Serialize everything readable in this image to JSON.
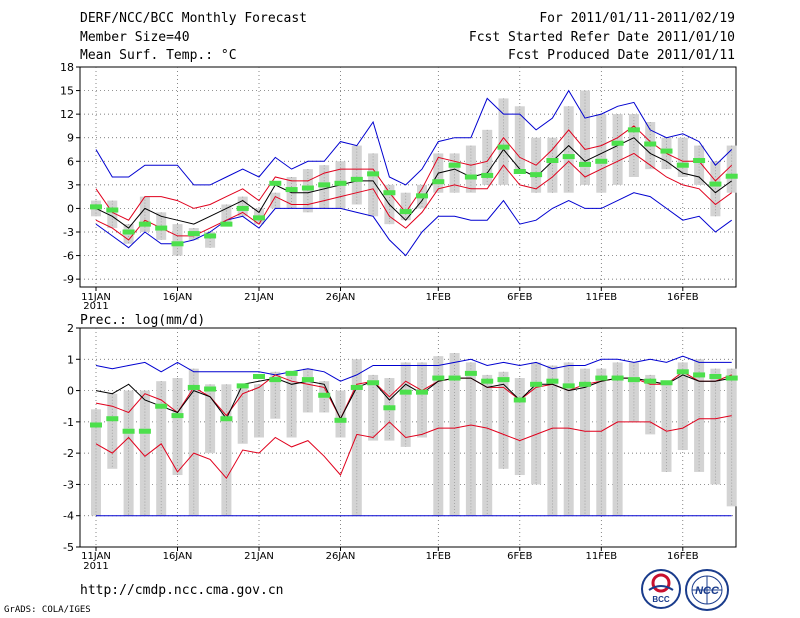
{
  "header": {
    "title": "DERF/NCC/BCC Monthly Forecast",
    "member_size": "Member Size=40",
    "variable": "Mean Surf. Temp.: °C",
    "period": "For 2011/01/11-2011/02/19",
    "fcst_started": "Fcst Started Refer Date 2011/01/10",
    "fcst_produced": "Fcst Produced Date 2011/01/11"
  },
  "footer": {
    "url": "http://cmdp.ncc.cma.gov.cn",
    "grads": "GrADS: COLA/IGES",
    "logo_bcc_text": "BCC",
    "logo_ncc_text": "NCC"
  },
  "colors": {
    "member_box": "#d3d3d3",
    "ensemble_mean": "#000000",
    "spread_inner": "#e0001c",
    "spread_outer": "#0000d0",
    "observed_marker": "#4ce04c",
    "grid": "#555555"
  },
  "chart_data": [
    {
      "type": "line",
      "title": "Mean Surf. Temp.: °C",
      "ylabel": "°C",
      "ylim": [
        -10,
        18
      ],
      "yticks": [
        -9,
        -6,
        -3,
        0,
        3,
        6,
        9,
        12,
        15,
        18
      ],
      "xlabels": [
        {
          "day": 1,
          "label": "11JAN",
          "sub": "2011"
        },
        {
          "day": 6,
          "label": "16JAN"
        },
        {
          "day": 11,
          "label": "21JAN"
        },
        {
          "day": 16,
          "label": "26JAN"
        },
        {
          "day": 22,
          "label": "1FEB"
        },
        {
          "day": 27,
          "label": "6FEB"
        },
        {
          "day": 32,
          "label": "11FEB"
        },
        {
          "day": 37,
          "label": "16FEB"
        }
      ],
      "days": [
        1,
        2,
        3,
        4,
        5,
        6,
        7,
        8,
        9,
        10,
        11,
        12,
        13,
        14,
        15,
        16,
        17,
        18,
        19,
        20,
        21,
        22,
        23,
        24,
        25,
        26,
        27,
        28,
        29,
        30,
        31,
        32,
        33,
        34,
        35,
        36,
        37,
        38,
        39,
        40
      ],
      "box_low": [
        -1,
        -2.5,
        -4.5,
        -3,
        -4,
        -6,
        -4,
        -5,
        -2,
        -1,
        -2,
        0,
        0,
        -0.5,
        0,
        0,
        0.5,
        -1,
        -2,
        -1.5,
        0,
        2,
        2,
        2,
        3,
        3,
        5,
        2,
        2,
        2,
        3,
        2,
        3,
        4,
        5,
        5,
        4,
        3,
        -1,
        2
      ],
      "box_high": [
        1,
        1,
        -2,
        1.5,
        -0.5,
        -2,
        -2.5,
        -3,
        0.5,
        1.5,
        0,
        2,
        4,
        5,
        5.5,
        6,
        8,
        7,
        3,
        2,
        3,
        7,
        7,
        8,
        10,
        14,
        13,
        9,
        9,
        13,
        15,
        12,
        12,
        12,
        11,
        9,
        9,
        8,
        6,
        8
      ],
      "mean": [
        0,
        -1,
        -2.5,
        0,
        -1,
        -1.5,
        -2,
        -1,
        0,
        1,
        -0.5,
        3,
        2,
        2,
        2.5,
        3,
        3.5,
        3.5,
        0.5,
        -1.5,
        1,
        4.5,
        5,
        4,
        4.5,
        7.5,
        5,
        4,
        6,
        8,
        6,
        7,
        8,
        9,
        7,
        6,
        4.5,
        4,
        2,
        3.5
      ],
      "upper1": [
        2.5,
        -0.5,
        -1.5,
        1.5,
        1.5,
        1,
        0,
        0.5,
        1.5,
        2.5,
        1,
        4,
        3.5,
        3.5,
        4.5,
        5,
        5,
        5,
        2,
        -0.5,
        2.5,
        6.5,
        6,
        5.5,
        6,
        9,
        6.5,
        5.5,
        7.5,
        10,
        7.5,
        8,
        9,
        10.5,
        8.5,
        7,
        6,
        6,
        3.5,
        5.5
      ],
      "lower1": [
        -1.5,
        -2.5,
        -4,
        -1.5,
        -2.5,
        -3.5,
        -3.5,
        -2.5,
        -1.5,
        -0.5,
        -2,
        1.5,
        0.5,
        0.5,
        1,
        1.5,
        2,
        2.5,
        -1,
        -2.5,
        -0.5,
        2.5,
        3,
        2.5,
        2.5,
        5.5,
        3,
        2.5,
        4,
        6,
        4,
        5,
        6,
        7,
        5.5,
        4,
        3,
        2.5,
        0.5,
        2
      ],
      "upper2": [
        7.5,
        4,
        4,
        5.5,
        5.5,
        5.5,
        3,
        3,
        4,
        5,
        4,
        6.5,
        5,
        6,
        6,
        8.5,
        8,
        11,
        4,
        3,
        5,
        8.5,
        9,
        9,
        14,
        12,
        12,
        10,
        11.5,
        15,
        11.5,
        12,
        13,
        13.5,
        10,
        9,
        9.5,
        8.5,
        5.5,
        7.5
      ],
      "lower2": [
        -2,
        -3.5,
        -5,
        -3,
        -4.5,
        -4.5,
        -4,
        -3,
        -1.5,
        -1,
        -2.5,
        0,
        0,
        0,
        0,
        0,
        -0.5,
        -1,
        -4,
        -6,
        -3,
        -1,
        -1,
        -1.5,
        -1.5,
        1,
        -2,
        -1.5,
        0,
        1,
        0,
        0,
        1,
        2,
        1.5,
        0,
        -1.5,
        -1,
        -3,
        -1.5
      ],
      "observed": [
        0.2,
        -0.2,
        -3,
        -2,
        -2.5,
        -4.5,
        -3.2,
        -3.5,
        -2,
        0,
        -1.2,
        3.2,
        2.4,
        2.6,
        3,
        3.2,
        3.7,
        4.4,
        2,
        -0.4,
        1.6,
        3.4,
        5.5,
        4,
        4.2,
        7.8,
        4.7,
        4.3,
        6.1,
        6.6,
        5.6,
        6,
        8.3,
        10,
        8.2,
        7.3,
        5.5,
        6.1,
        3.1,
        4.1
      ]
    },
    {
      "type": "line",
      "title": "Prec.: log(mm/d)",
      "ylabel": "log(mm/d)",
      "ylim": [
        -5,
        2
      ],
      "yticks": [
        -5,
        -4,
        -3,
        -2,
        -1,
        0,
        1,
        2
      ],
      "xlabels": [
        {
          "day": 1,
          "label": "11JAN",
          "sub": "2011"
        },
        {
          "day": 6,
          "label": "16JAN"
        },
        {
          "day": 11,
          "label": "21JAN"
        },
        {
          "day": 16,
          "label": "26JAN"
        },
        {
          "day": 22,
          "label": "1FEB"
        },
        {
          "day": 27,
          "label": "6FEB"
        },
        {
          "day": 32,
          "label": "11FEB"
        },
        {
          "day": 37,
          "label": "16FEB"
        }
      ],
      "days": [
        1,
        2,
        3,
        4,
        5,
        6,
        7,
        8,
        9,
        10,
        11,
        12,
        13,
        14,
        15,
        16,
        17,
        18,
        19,
        20,
        21,
        22,
        23,
        24,
        25,
        26,
        27,
        28,
        29,
        30,
        31,
        32,
        33,
        34,
        35,
        36,
        37,
        38,
        39,
        40
      ],
      "box_low": [
        -4,
        -2.5,
        -4,
        -4,
        -4,
        -2.7,
        -4,
        -2,
        -4,
        -1.7,
        -1.5,
        -0.9,
        -1.5,
        -0.7,
        -0.7,
        -1.5,
        -4,
        -1.6,
        -1.6,
        -1.8,
        -1.5,
        -4,
        -4,
        -4,
        -4,
        -2.5,
        -2.7,
        -3,
        -4,
        -4,
        -4,
        -4,
        -4,
        -1,
        -1.4,
        -2.6,
        -1.9,
        -2.6,
        -3,
        -3.7
      ],
      "box_high": [
        -0.6,
        -0.1,
        0,
        0,
        0.3,
        0.4,
        0.7,
        0.2,
        0.2,
        0.2,
        0.2,
        0.6,
        0.6,
        0.7,
        0.3,
        0,
        1,
        0.5,
        0.4,
        0.9,
        0.9,
        1.1,
        1.2,
        0.9,
        0.5,
        0.6,
        0.4,
        0.9,
        0.8,
        0.9,
        0.7,
        0.7,
        0.9,
        0.9,
        0.5,
        0.3,
        0.9,
        1,
        0.7,
        0.7
      ],
      "mean": [
        0,
        -0.1,
        0.2,
        -0.3,
        -0.5,
        -0.7,
        0,
        -0.2,
        -0.9,
        0.2,
        0.3,
        0.4,
        0.2,
        0.3,
        0.2,
        -0.9,
        0.1,
        0.3,
        -0.3,
        0.2,
        -0.1,
        0.3,
        0.4,
        0.4,
        0.1,
        0.2,
        -0.3,
        0.2,
        0.2,
        0,
        0.1,
        0.3,
        0.4,
        0.4,
        0.3,
        0.2,
        0.5,
        0.3,
        0.3,
        0.4
      ],
      "upper1": [
        -0.4,
        -0.5,
        -0.7,
        -0.1,
        -0.3,
        -0.7,
        0.1,
        -0.2,
        -0.8,
        -0.1,
        0.1,
        0.5,
        0.3,
        0.2,
        0.1,
        -0.9,
        0.2,
        0.3,
        -0.2,
        0.3,
        0,
        0.3,
        0.4,
        0.4,
        0.1,
        0.1,
        -0.3,
        0.1,
        0.2,
        0,
        0.2,
        0.3,
        0.4,
        0.4,
        0.2,
        0.2,
        0.6,
        0.3,
        0.3,
        0.5
      ],
      "lower1": [
        -1.7,
        -2,
        -1.5,
        -2.1,
        -1.7,
        -2.6,
        -2,
        -2.2,
        -2.8,
        -1.9,
        -2,
        -1.5,
        -1.8,
        -1.6,
        -2.1,
        -2.7,
        -1.4,
        -1.5,
        -1,
        -1.5,
        -1.4,
        -1.2,
        -1.2,
        -1.1,
        -1.2,
        -1.4,
        -1.6,
        -1.4,
        -1.2,
        -1.2,
        -1.3,
        -1.3,
        -1,
        -1,
        -1,
        -1.3,
        -1.2,
        -0.9,
        -0.9,
        -0.8
      ],
      "upper2": [
        0.8,
        0.7,
        0.8,
        0.9,
        0.6,
        0.9,
        0.6,
        0.6,
        0.6,
        0.6,
        0.6,
        0.5,
        0.6,
        0.7,
        0.6,
        0.3,
        0.5,
        0.8,
        0.8,
        0.8,
        0.8,
        0.8,
        0.9,
        1,
        0.8,
        0.9,
        0.8,
        0.9,
        0.7,
        0.8,
        0.8,
        1,
        1,
        0.9,
        1,
        0.9,
        1.1,
        0.9,
        0.9,
        0.9
      ],
      "lower2": [
        -4,
        -4,
        -4,
        -4,
        -4,
        -4,
        -4,
        -4,
        -4,
        -4,
        -4,
        -4,
        -4,
        -4,
        -4,
        -4,
        -4,
        -4,
        -4,
        -4,
        -4,
        -4,
        -4,
        -4,
        -4,
        -4,
        -4,
        -4,
        -4,
        -4,
        -4,
        -4,
        -4,
        -4,
        -4,
        -4,
        -4,
        -4,
        -4,
        -4
      ],
      "observed": [
        -1.1,
        -0.9,
        -1.3,
        -1.3,
        -0.5,
        -0.8,
        0.1,
        0.05,
        -0.9,
        0.15,
        0.45,
        0.35,
        0.55,
        0.35,
        -0.15,
        -0.95,
        0.1,
        0.25,
        -0.55,
        -0.05,
        -0.05,
        0.4,
        0.4,
        0.55,
        0.3,
        0.35,
        -0.3,
        0.2,
        0.3,
        0.15,
        0.2,
        0.4,
        0.4,
        0.35,
        0.3,
        0.25,
        0.6,
        0.5,
        0.45,
        0.4
      ]
    }
  ]
}
